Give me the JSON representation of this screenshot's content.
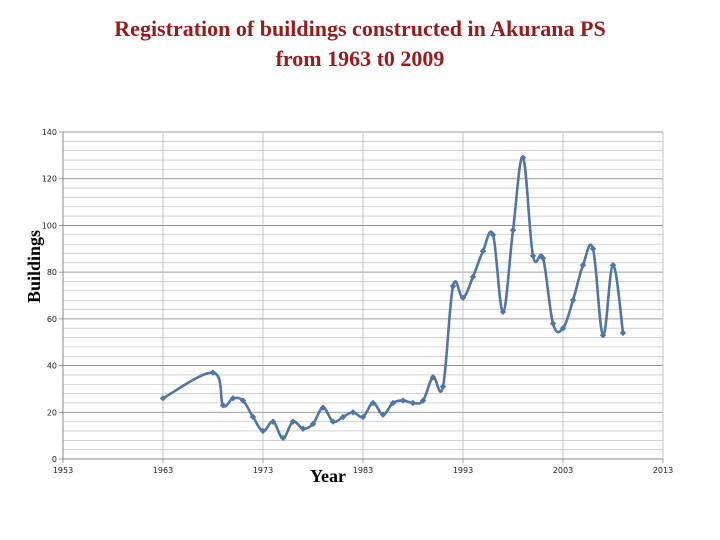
{
  "chart_data": {
    "type": "line",
    "title_line1": "Registration of buildings constructed in Akurana PS",
    "title_line2": "from 1963 t0 2009",
    "xlabel": "Year",
    "ylabel": "Buildings",
    "xlim": [
      1953,
      2013
    ],
    "ylim": [
      0,
      140
    ],
    "x_ticks": [
      1953,
      1963,
      1973,
      1983,
      1993,
      2003,
      2013
    ],
    "y_ticks": [
      0,
      20,
      40,
      60,
      80,
      100,
      120,
      140
    ],
    "grid": true,
    "series": [
      {
        "x": [
          1963,
          1968,
          1969,
          1970,
          1971,
          1972,
          1973,
          1974,
          1975,
          1976,
          1977,
          1978,
          1979,
          1980,
          1981,
          1982,
          1983,
          1984,
          1985,
          1986,
          1987,
          1988,
          1989,
          1990,
          1991,
          1992,
          1993,
          1994,
          1995,
          1996,
          1997,
          1998,
          1999,
          2000,
          2001,
          2002,
          2003,
          2004,
          2005,
          2006,
          2007,
          2008,
          2009
        ],
        "values": [
          26,
          37,
          23,
          26,
          25,
          18,
          12,
          16,
          9,
          16,
          13,
          15,
          22,
          16,
          18,
          20,
          18,
          24,
          19,
          24,
          25,
          24,
          25,
          35,
          31,
          74,
          69,
          78,
          89,
          96,
          63,
          98,
          129,
          87,
          86,
          58,
          56,
          68,
          83,
          90,
          53,
          83,
          54
        ]
      }
    ]
  },
  "colors": {
    "title": "#9b1b1b",
    "line": "#4f76a6",
    "grid": "#b8b8b8",
    "axis": "#888888"
  }
}
